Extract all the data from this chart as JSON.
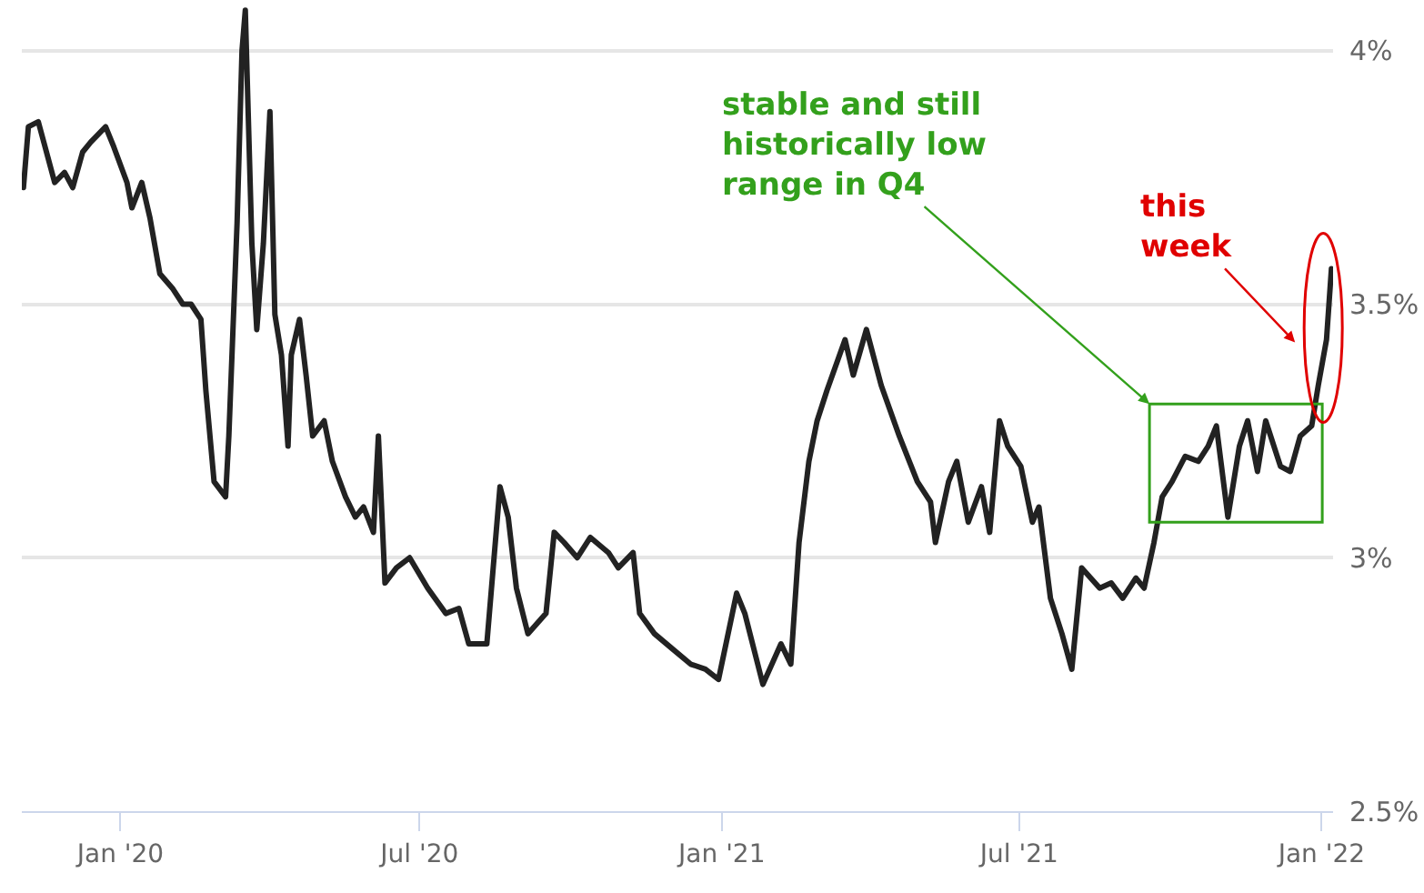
{
  "chart_data": {
    "type": "line",
    "x": [
      "2019-11-03",
      "2019-11-06",
      "2019-11-12",
      "2019-11-22",
      "2019-11-28",
      "2019-12-03",
      "2019-12-09",
      "2019-12-14",
      "2019-12-23",
      "2019-12-28",
      "2020-01-05",
      "2020-01-08",
      "2020-01-14",
      "2020-01-19",
      "2020-01-25",
      "2020-02-02",
      "2020-02-08",
      "2020-02-13",
      "2020-02-19",
      "2020-02-22",
      "2020-02-27",
      "2020-03-05",
      "2020-03-07",
      "2020-03-12",
      "2020-03-15",
      "2020-03-17",
      "2020-03-21",
      "2020-03-24",
      "2020-03-28",
      "2020-04-01",
      "2020-04-04",
      "2020-04-08",
      "2020-04-12",
      "2020-04-14",
      "2020-04-19",
      "2020-04-23",
      "2020-04-27",
      "2020-05-04",
      "2020-05-09",
      "2020-05-17",
      "2020-05-23",
      "2020-05-28",
      "2020-06-03",
      "2020-06-06",
      "2020-06-10",
      "2020-06-17",
      "2020-06-25",
      "2020-07-06",
      "2020-07-17",
      "2020-07-25",
      "2020-07-31",
      "2020-08-11",
      "2020-08-19",
      "2020-08-24",
      "2020-08-29",
      "2020-09-05",
      "2020-09-16",
      "2020-09-21",
      "2020-09-27",
      "2020-10-05",
      "2020-10-13",
      "2020-10-24",
      "2020-10-30",
      "2020-11-08",
      "2020-11-12",
      "2020-11-21",
      "2020-12-02",
      "2020-12-13",
      "2020-12-22",
      "2020-12-30",
      "2021-01-10",
      "2021-01-15",
      "2021-01-26",
      "2021-02-06",
      "2021-02-12",
      "2021-02-17",
      "2021-02-23",
      "2021-02-28",
      "2021-03-06",
      "2021-03-17",
      "2021-03-22",
      "2021-03-30",
      "2021-04-08",
      "2021-04-19",
      "2021-04-30",
      "2021-05-08",
      "2021-05-11",
      "2021-05-19",
      "2021-05-24",
      "2021-05-31",
      "2021-06-08",
      "2021-06-13",
      "2021-06-19",
      "2021-06-24",
      "2021-07-02",
      "2021-07-09",
      "2021-07-13",
      "2021-07-20",
      "2021-07-27",
      "2021-08-02",
      "2021-08-08",
      "2021-08-19",
      "2021-08-26",
      "2021-09-02",
      "2021-09-10",
      "2021-09-15",
      "2021-09-21",
      "2021-09-26",
      "2021-10-02",
      "2021-10-10",
      "2021-10-18",
      "2021-10-24",
      "2021-10-29",
      "2021-11-05",
      "2021-11-12",
      "2021-11-17",
      "2021-11-23",
      "2021-11-28",
      "2021-12-07",
      "2021-12-13",
      "2021-12-19",
      "2021-12-26",
      "2021-12-30",
      "2022-01-04",
      "2022-01-07"
    ],
    "series": [
      {
        "color": "#222222",
        "values": [
          3.73,
          3.85,
          3.86,
          3.74,
          3.76,
          3.73,
          3.8,
          3.82,
          3.85,
          3.81,
          3.74,
          3.69,
          3.74,
          3.67,
          3.56,
          3.53,
          3.5,
          3.5,
          3.47,
          3.33,
          3.15,
          3.12,
          3.24,
          3.66,
          4.0,
          4.08,
          3.62,
          3.45,
          3.62,
          3.88,
          3.48,
          3.4,
          3.22,
          3.4,
          3.47,
          3.36,
          3.24,
          3.27,
          3.19,
          3.12,
          3.08,
          3.1,
          3.05,
          3.24,
          2.95,
          2.98,
          3.0,
          2.94,
          2.89,
          2.9,
          2.83,
          2.83,
          3.14,
          3.08,
          2.94,
          2.85,
          2.89,
          3.05,
          3.03,
          3.0,
          3.04,
          3.01,
          2.98,
          3.01,
          2.89,
          2.85,
          2.82,
          2.79,
          2.78,
          2.76,
          2.93,
          2.89,
          2.75,
          2.83,
          2.79,
          3.03,
          3.19,
          3.27,
          3.33,
          3.43,
          3.36,
          3.45,
          3.34,
          3.24,
          3.15,
          3.11,
          3.03,
          3.15,
          3.19,
          3.07,
          3.14,
          3.05,
          3.27,
          3.22,
          3.18,
          3.07,
          3.1,
          2.92,
          2.85,
          2.78,
          2.98,
          2.94,
          2.95,
          2.92,
          2.96,
          2.94,
          3.03,
          3.12,
          3.15,
          3.2,
          3.19,
          3.22,
          3.26,
          3.08,
          3.22,
          3.27,
          3.17,
          3.27,
          3.18,
          3.17,
          3.24,
          3.26,
          3.34,
          3.43,
          3.57
        ]
      }
    ],
    "xlim": [
      "2019-11-02",
      "2022-01-08"
    ],
    "xticks": [
      {
        "value": "2020-01-01",
        "label": "Jan '20"
      },
      {
        "value": "2020-07-01",
        "label": "Jul '20"
      },
      {
        "value": "2021-01-01",
        "label": "Jan '21"
      },
      {
        "value": "2021-07-01",
        "label": "Jul '21"
      },
      {
        "value": "2022-01-01",
        "label": "Jan '22"
      }
    ],
    "ylim": [
      2.5,
      4.1
    ],
    "yticks": [
      {
        "value": 2.5,
        "label": "2.5%"
      },
      {
        "value": 3,
        "label": "3%"
      },
      {
        "value": 3.5,
        "label": "3.5%"
      },
      {
        "value": 4,
        "label": "4%"
      }
    ],
    "grid": "y",
    "marker": "none",
    "line_style": "solid",
    "annotations": [
      "stable and still\nhistorically low\nrange in Q4",
      "this\nweek"
    ]
  }
}
